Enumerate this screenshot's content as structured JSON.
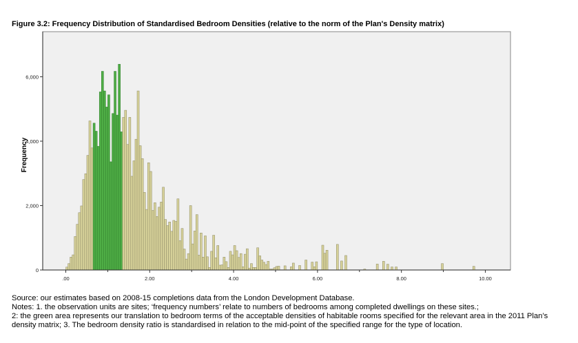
{
  "chart_data": {
    "type": "bar",
    "title": "Figure 3.2:  Frequency Distribution of Standardised Bedroom Densities (relative to the norm of the  Plan's Density matrix)",
    "xlabel": "",
    "ylabel": "Frequency",
    "xlim": [
      -0.55,
      10.6
    ],
    "ylim": [
      0,
      7400
    ],
    "x_ticks": [
      0,
      2,
      4,
      6,
      8,
      10
    ],
    "x_tick_labels": [
      ".00",
      "2.00",
      "4.00",
      "6.00",
      "8.00",
      "10.00"
    ],
    "y_ticks": [
      0,
      2000,
      4000,
      6000
    ],
    "y_tick_labels": [
      "0",
      "2,000",
      "4,000",
      "6,000"
    ],
    "grid": false,
    "bin_start": 0,
    "bin_width": 0.05,
    "highlight_range": [
      0.65,
      1.35
    ],
    "frequencies": [
      90,
      200,
      400,
      470,
      1040,
      1420,
      1780,
      1990,
      2810,
      2990,
      3560,
      4630,
      3790,
      4560,
      4310,
      3840,
      5530,
      6170,
      5560,
      5060,
      5440,
      3360,
      4860,
      6170,
      4810,
      6390,
      4290,
      4740,
      4960,
      3900,
      4740,
      2910,
      3390,
      4060,
      5560,
      3860,
      3460,
      2410,
      1880,
      3330,
      3060,
      1850,
      2090,
      1660,
      1950,
      2110,
      2570,
      1570,
      1380,
      1490,
      1200,
      1540,
      1510,
      2210,
      910,
      1290,
      650,
      340,
      510,
      2000,
      810,
      1210,
      1720,
      460,
      1150,
      400,
      1060,
      410,
      80,
      580,
      1080,
      380,
      760,
      150,
      160,
      400,
      260,
      80,
      580,
      470,
      760,
      600,
      390,
      510,
      100,
      490,
      660,
      60,
      200,
      80,
      80,
      690,
      440,
      310,
      240,
      170,
      270,
      30,
      30,
      70,
      110,
      120,
      0,
      0,
      130,
      0,
      0,
      100,
      215,
      0,
      0,
      140,
      0,
      0,
      310,
      0,
      0,
      245,
      100,
      255,
      0,
      0,
      770,
      520,
      615,
      0,
      0,
      0,
      0,
      795,
      0,
      280,
      0,
      450,
      0,
      0,
      0,
      0,
      0,
      0,
      0,
      0,
      30,
      0,
      0,
      0,
      0,
      0,
      185,
      0,
      0,
      270,
      0,
      180,
      0,
      95,
      0,
      95,
      0,
      0,
      0,
      0,
      0,
      0,
      0,
      0,
      0,
      0,
      0,
      0,
      0,
      0,
      0,
      0,
      0,
      0,
      0,
      0,
      0,
      200,
      0,
      0,
      0,
      0,
      0,
      0,
      0,
      0,
      0,
      0,
      0,
      0,
      0,
      0,
      115
    ],
    "colors": {
      "bar": "#d6d199",
      "bar_stroke": "#8c8864",
      "highlight": "#4fae46",
      "highlight_stroke": "#2e7a29",
      "plot_background": "#f0f0f0"
    }
  },
  "notes": {
    "lines": [
      "Source: our estimates based on 2008-15 completions data from the London Development Database.",
      "Notes: 1. the observation units are sites; ‘frequency numbers’ relate to numbers of bedrooms among completed dwellings on these sites.;",
      "2: the green area represents our translation to bedroom terms of the acceptable densities of habitable rooms specified for the relevant area in the 2011 Plan’s",
      "density matrix; 3. The bedroom density ratio is standardised in relation to the mid-point of the specified range for the type of location."
    ]
  }
}
